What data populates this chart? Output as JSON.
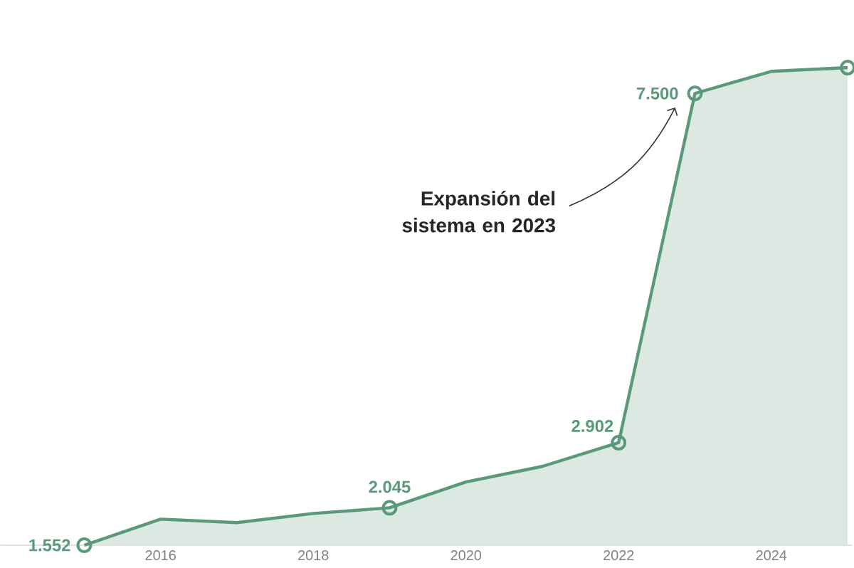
{
  "chart_data": {
    "type": "area",
    "x": [
      2015,
      2016,
      2017,
      2018,
      2019,
      2020,
      2021,
      2022,
      2023,
      2024,
      2025
    ],
    "series": [
      {
        "color": "#5a9a7a",
        "values": [
          1552,
          1895,
          1850,
          1970,
          2045,
          2385,
          2590,
          2902,
          7500,
          7790,
          7840
        ],
        "value_labels": [
          "1.552",
          null,
          null,
          null,
          "2.045",
          null,
          null,
          "2.902",
          "7.500",
          null,
          null
        ]
      },
      {
        "type": "scatter",
        "marker": "circle",
        "color": "#5a9a7a",
        "x": [
          2015,
          2019,
          2022,
          2023,
          2025
        ],
        "values": [
          1552,
          2045,
          2902,
          7500,
          7840
        ]
      }
    ],
    "xlim": [
      2013.9,
      2025.06
    ],
    "xticks": [
      2016,
      2018,
      2020,
      2022,
      2024
    ],
    "tick_labels": "x",
    "annotations": [
      "**Expansión del sistema en 2023**"
    ]
  }
}
